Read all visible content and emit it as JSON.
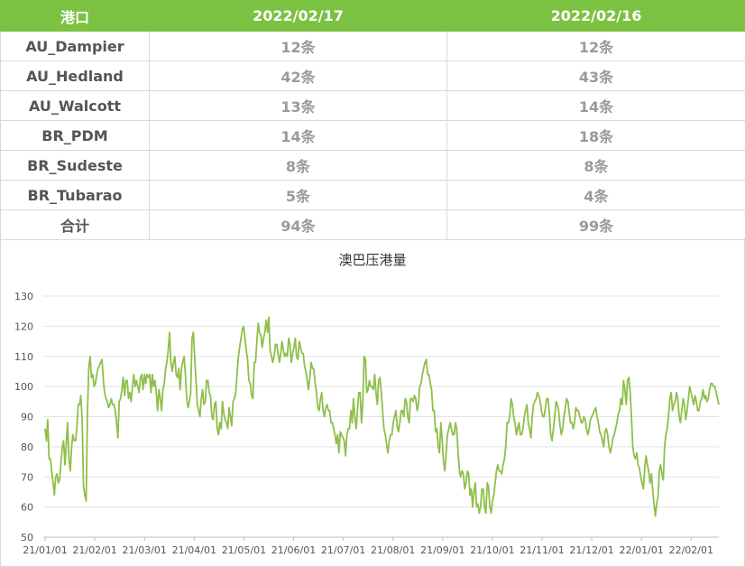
{
  "table": {
    "headers": [
      "港口",
      "2022/02/17",
      "2022/02/16"
    ],
    "rows": [
      {
        "port": "AU_Dampier",
        "d1": "12条",
        "d2": "12条"
      },
      {
        "port": "AU_Hedland",
        "d1": "42条",
        "d2": "43条"
      },
      {
        "port": "AU_Walcott",
        "d1": "13条",
        "d2": "14条"
      },
      {
        "port": "BR_PDM",
        "d1": "14条",
        "d2": "18条"
      },
      {
        "port": "BR_Sudeste",
        "d1": "8条",
        "d2": "8条"
      },
      {
        "port": "BR_Tubarao",
        "d1": "5条",
        "d2": "4条"
      },
      {
        "port": "合计",
        "d1": "94条",
        "d2": "99条"
      }
    ]
  },
  "colors": {
    "header_bg": "#7cc242",
    "line": "#8fbf4a",
    "grid": "#e3e3e3"
  },
  "chart_data": {
    "type": "line",
    "title": "澳巴压港量",
    "xlabel": "",
    "ylabel": "",
    "ylim": [
      50,
      130
    ],
    "yticks": [
      50,
      60,
      70,
      80,
      90,
      100,
      110,
      120,
      130
    ],
    "xticks": [
      "21/01/01",
      "21/02/01",
      "21/03/01",
      "21/04/01",
      "21/05/01",
      "21/06/01",
      "21/07/01",
      "21/08/01",
      "21/09/01",
      "21/10/01",
      "21/11/01",
      "21/12/01",
      "22/01/01",
      "22/02/01"
    ],
    "grid": "horizontal",
    "series": [
      {
        "values": [
          86,
          82,
          89,
          76,
          76,
          72,
          68,
          64,
          70,
          71,
          68,
          69,
          75,
          80,
          82,
          74,
          81,
          88,
          76,
          72,
          80,
          84,
          82,
          82,
          86,
          94,
          94,
          97,
          89,
          67,
          64,
          62,
          92,
          106,
          110,
          103,
          104,
          100,
          101,
          104,
          106,
          107,
          108,
          109,
          102,
          98,
          96,
          95,
          93,
          94,
          96,
          94,
          94,
          92,
          88,
          83,
          95,
          96,
          99,
          103,
          97,
          102,
          102,
          96,
          98,
          95,
          100,
          104,
          100,
          102,
          100,
          98,
          103,
          104,
          99,
          104,
          101,
          104,
          103,
          104,
          98,
          104,
          100,
          102,
          98,
          92,
          99,
          96,
          92,
          99,
          101,
          106,
          108,
          112,
          118,
          108,
          105,
          108,
          110,
          104,
          103,
          106,
          99,
          106,
          108,
          110,
          104,
          96,
          93,
          95,
          98,
          116,
          118,
          110,
          102,
          94,
          92,
          90,
          96,
          99,
          94,
          95,
          102,
          102,
          98,
          97,
          90,
          89,
          94,
          95,
          86,
          84,
          88,
          86,
          95,
          91,
          89,
          88,
          86,
          93,
          90,
          87,
          95,
          96,
          98,
          104,
          110,
          113,
          116,
          119,
          120,
          116,
          112,
          109,
          102,
          101,
          97,
          96,
          108,
          108,
          115,
          121,
          118,
          117,
          113,
          116,
          118,
          122,
          118,
          123,
          112,
          110,
          108,
          110,
          114,
          114,
          111,
          108,
          111,
          115,
          112,
          110,
          111,
          110,
          116,
          114,
          108,
          111,
          113,
          116,
          110,
          109,
          115,
          113,
          111,
          111,
          107,
          105,
          102,
          99,
          103,
          108,
          106,
          106,
          101,
          98,
          93,
          92,
          96,
          98,
          92,
          90,
          93,
          94,
          92,
          92,
          88,
          88,
          86,
          84,
          81,
          84,
          78,
          85,
          84,
          83,
          82,
          77,
          84,
          86,
          86,
          92,
          88,
          96,
          90,
          86,
          92,
          98,
          98,
          88,
          94,
          110,
          109,
          98,
          99,
          102,
          100,
          100,
          99,
          104,
          98,
          94,
          102,
          103,
          98,
          92,
          86,
          84,
          81,
          78,
          82,
          84,
          84,
          88,
          90,
          92,
          87,
          85,
          88,
          92,
          92,
          90,
          96,
          95,
          90,
          88,
          96,
          96,
          95,
          97,
          96,
          92,
          94,
          100,
          101,
          104,
          106,
          108,
          109,
          104,
          104,
          101,
          99,
          92,
          92,
          85,
          86,
          80,
          78,
          88,
          82,
          75,
          72,
          78,
          84,
          86,
          88,
          86,
          84,
          84,
          88,
          86,
          78,
          72,
          70,
          72,
          71,
          66,
          68,
          72,
          71,
          64,
          66,
          60,
          65,
          68,
          60,
          61,
          58,
          60,
          66,
          66,
          60,
          58,
          68,
          67,
          60,
          58,
          62,
          64,
          68,
          72,
          74,
          72,
          72,
          71,
          74,
          76,
          80,
          88,
          88,
          90,
          96,
          94,
          90,
          88,
          84,
          86,
          88,
          84,
          84,
          86,
          90,
          92,
          94,
          88,
          86,
          83,
          90,
          94,
          95,
          96,
          98,
          97,
          95,
          92,
          90,
          90,
          93,
          96,
          96,
          91,
          84,
          82,
          86,
          90,
          95,
          94,
          92,
          87,
          84,
          86,
          90,
          93,
          96,
          95,
          91,
          88,
          88,
          86,
          88,
          93,
          92,
          92,
          90,
          88,
          88,
          90,
          89,
          86,
          84,
          86,
          89,
          90,
          91,
          92,
          93,
          90,
          88,
          85,
          84,
          82,
          80,
          85,
          86,
          84,
          80,
          78,
          80,
          83,
          84,
          86,
          88,
          91,
          92,
          96,
          94,
          102,
          99,
          94,
          102,
          103,
          98,
          90,
          80,
          77,
          76,
          78,
          74,
          73,
          70,
          68,
          66,
          73,
          77,
          74,
          72,
          68,
          71,
          66,
          61,
          57,
          61,
          63,
          72,
          74,
          71,
          69,
          80,
          84,
          86,
          90,
          96,
          98,
          92,
          94,
          95,
          98,
          96,
          90,
          88,
          92,
          96,
          94,
          89,
          92,
          96,
          100,
          98,
          96,
          94,
          97,
          95,
          92,
          92,
          95,
          96,
          99,
          96,
          97,
          95,
          96,
          99,
          101,
          101,
          100,
          100,
          98,
          96,
          94
        ]
      }
    ]
  }
}
